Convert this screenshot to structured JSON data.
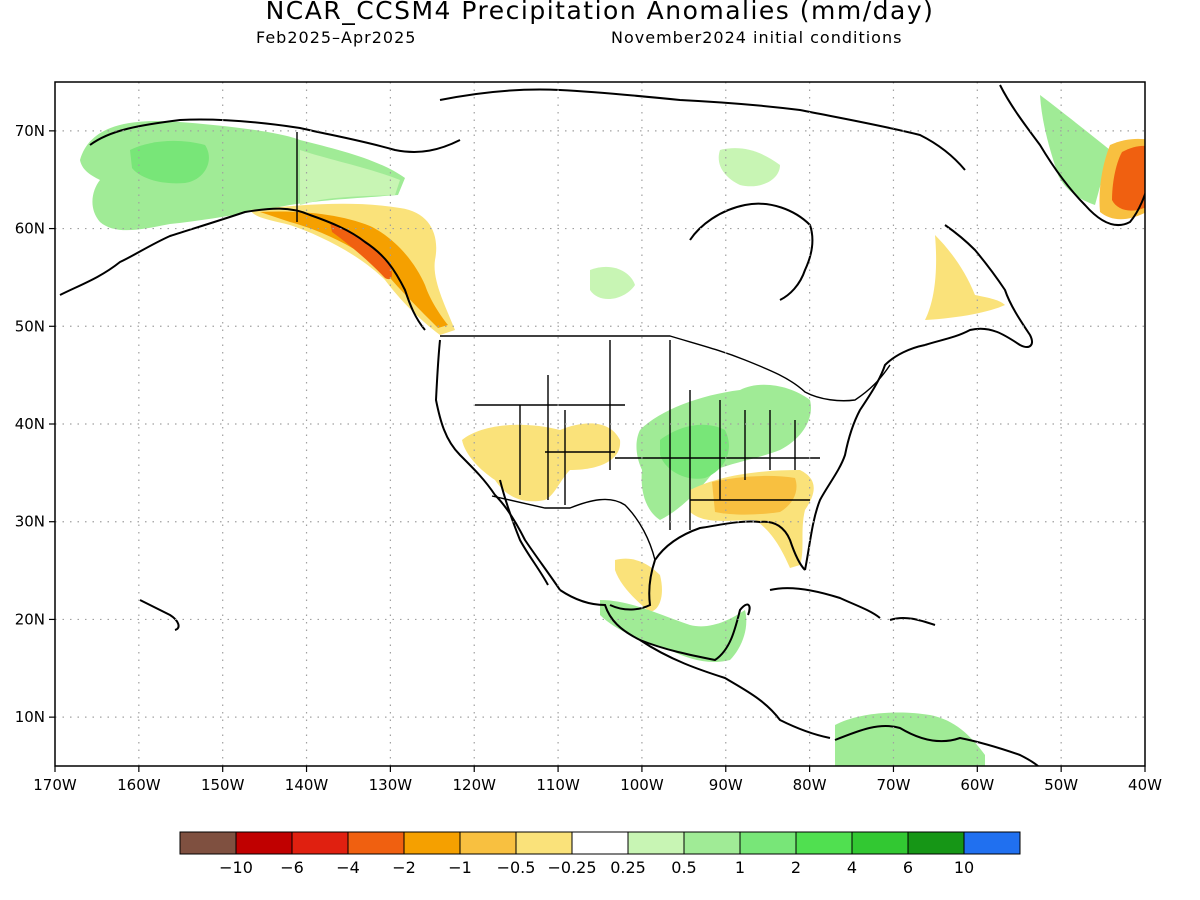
{
  "title": "NCAR_CCSM4 Precipitation Anomalies (mm/day)",
  "subtitle_left": "Feb2025–Apr2025",
  "subtitle_right": "November2024 initial conditions",
  "map": {
    "lon_range": [
      -170,
      -40
    ],
    "lat_range": [
      5,
      75
    ],
    "lon_ticks": [
      "170W",
      "160W",
      "150W",
      "140W",
      "130W",
      "120W",
      "110W",
      "100W",
      "90W",
      "80W",
      "70W",
      "60W",
      "50W",
      "40W"
    ],
    "lat_ticks": [
      "10N",
      "20N",
      "30N",
      "40N",
      "50N",
      "60N",
      "70N"
    ],
    "anomaly_regions": [
      {
        "region": "Alaska / Bering",
        "category": "0.5"
      },
      {
        "region": "Southern Alaska coast / British Columbia",
        "category": "-2"
      },
      {
        "region": "US Southwest",
        "category": "-0.5"
      },
      {
        "region": "Ohio & Mississippi valleys",
        "category": "1"
      },
      {
        "region": "US Southeast / Gulf Coast",
        "category": "-1"
      },
      {
        "region": "Northern South America",
        "category": "0.5"
      },
      {
        "region": "Southeast Greenland",
        "category": "-4"
      },
      {
        "region": "Southern Mexico / Central America",
        "category": "1"
      }
    ]
  },
  "colorbar": {
    "colors": [
      "#7f5040",
      "#c00000",
      "#e02010",
      "#f06010",
      "#f5a000",
      "#f8c040",
      "#fae27a",
      "#ffffff",
      "#c8f5b4",
      "#a0eb96",
      "#78e678",
      "#50e050",
      "#32c832",
      "#169616",
      "#2070f0"
    ],
    "labels": [
      "−10",
      "−6",
      "−4",
      "−2",
      "−1",
      "−0.5",
      "−0.25",
      "0.25",
      "0.5",
      "1",
      "2",
      "4",
      "6",
      "10"
    ]
  }
}
